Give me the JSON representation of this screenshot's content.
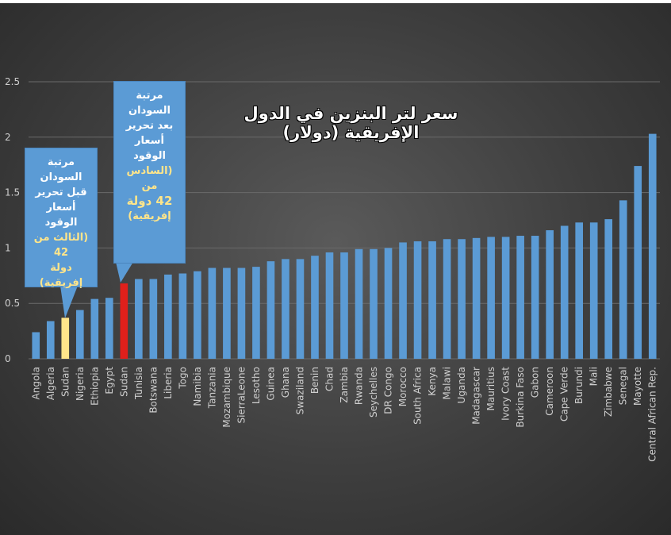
{
  "chart_data": {
    "type": "bar",
    "title": "سعر لتر البنزين في الدول الإفريقية (دولار)",
    "xlabel": "",
    "ylabel": "",
    "ylim": [
      0,
      2.5
    ],
    "yticks": [
      "0",
      "0.5",
      "1",
      "1.5",
      "2",
      "2.5"
    ],
    "grid": true,
    "legend": "none",
    "categories": [
      "Angola",
      "Algeria",
      "Sudan",
      "Nigeria",
      "Ethiopia",
      "Egypt",
      "Sudan",
      "Tunisia",
      "Botswana",
      "Liberia",
      "Togo",
      "Namibia",
      "Tanzania",
      "Mozambique",
      "SierraLeone",
      "Lesotho",
      "Guinea",
      "Ghana",
      "Swaziland",
      "Benin",
      "Chad",
      "Zambia",
      "Rwanda",
      "Seychelles",
      "DR Congo",
      "Morocco",
      "South Africa",
      "Kenya",
      "Malawi",
      "Uganda",
      "Madagascar",
      "Mauritius",
      "Ivory Coast",
      "Burkina Faso",
      "Gabon",
      "Cameroon",
      "Cape Verde",
      "Burundi",
      "Mali",
      "Zimbabwe",
      "Senegal",
      "Mayotte",
      "Central African Rep."
    ],
    "values": [
      0.24,
      0.34,
      0.37,
      0.44,
      0.54,
      0.55,
      0.68,
      0.72,
      0.72,
      0.76,
      0.77,
      0.79,
      0.82,
      0.82,
      0.82,
      0.83,
      0.88,
      0.9,
      0.9,
      0.93,
      0.96,
      0.96,
      0.99,
      0.99,
      1.0,
      1.05,
      1.06,
      1.06,
      1.08,
      1.08,
      1.09,
      1.1,
      1.1,
      1.11,
      1.11,
      1.16,
      1.2,
      1.23,
      1.23,
      1.26,
      1.43,
      1.74,
      2.03
    ],
    "bar_colors": {
      "default": "#5b9bd5",
      "highlight_before": "#ffe58a",
      "highlight_after": "#e0201b"
    },
    "highlight_before_index": 2,
    "highlight_after_index": 6
  },
  "callouts": {
    "before": {
      "line1": "مرتبة السودان",
      "line2": "قبل تحرير",
      "line3": "أسعار الوقود",
      "line4": "(الثالث من 42",
      "line5": "دولة إفريقية)"
    },
    "after": {
      "line1": "مرتبة السودان",
      "line2": "بعد تحرير",
      "line3": "أسعار الوقود",
      "line4": "(السادس من",
      "line5": "42 دولة",
      "line6": "إفريقية)"
    }
  },
  "colors": {
    "callout_bg": "#5b9bd5",
    "callout_highlight_text": "#ffe58a",
    "axis_text": "#cfcfcf",
    "gridline": "#6a6a6a"
  }
}
